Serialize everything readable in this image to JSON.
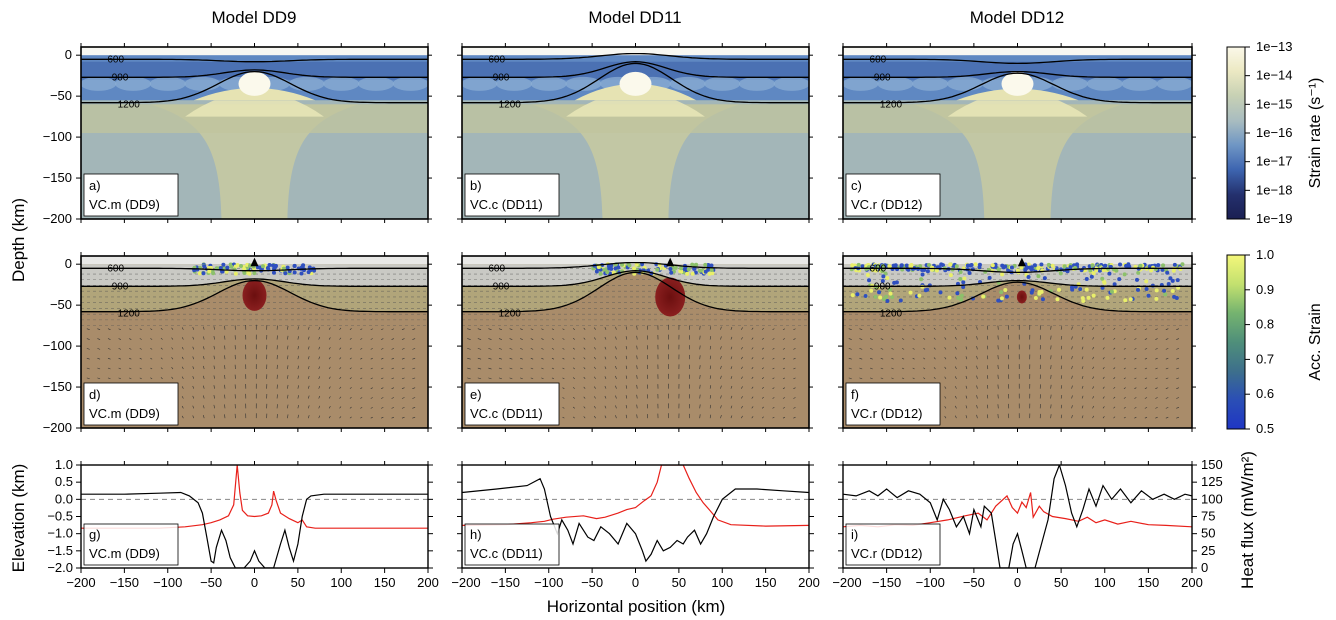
{
  "figure": {
    "columns": [
      {
        "title": "Model DD9",
        "model": "VC.m (DD9)"
      },
      {
        "title": "Model DD11",
        "model": "VC.c (DD11)"
      },
      {
        "title": "Model DD12",
        "model": "VC.r (DD12)"
      }
    ],
    "panel_letters": [
      "a)",
      "b)",
      "c)",
      "d)",
      "e)",
      "f)",
      "g)",
      "h)",
      "i)"
    ],
    "ylabel_depth": "Depth (km)",
    "ylabel_elevation": "Elevation (km)",
    "ylabel_heatflux": "Heat flux (mW/m²)",
    "xlabel": "Horizontal position (km)",
    "contour_labels": [
      "600",
      "900",
      "1200"
    ],
    "colorbar_strain_rate": {
      "label": "Strain rate (s⁻¹)",
      "ticks": [
        "1e−13",
        "1e−14",
        "1e−15",
        "1e−16",
        "1e−17",
        "1e−18",
        "1e−19"
      ],
      "colors": [
        "#fbf8e9",
        "#ece9c3",
        "#c8d1b4",
        "#a8bcc0",
        "#6f96c4",
        "#3e66b1",
        "#24306d",
        "#1a1f52"
      ]
    },
    "colorbar_acc_strain": {
      "label": "Acc. Strain",
      "ticks": [
        "1.0",
        "0.9",
        "0.8",
        "0.7",
        "0.6",
        "0.5"
      ],
      "colors": [
        "#f4f77a",
        "#c2e06f",
        "#76b46f",
        "#4f8f7a",
        "#3d6f8c",
        "#2b4fb5",
        "#1f36c4"
      ]
    }
  },
  "chart_data": [
    {
      "type": "heatmap",
      "row": "strain_rate",
      "x_range": [
        -200,
        200
      ],
      "y_range": [
        -200,
        10
      ],
      "y_ticks": [
        0,
        -50,
        -100,
        -150,
        -200
      ],
      "panels": [
        {
          "model": "DD9",
          "isotherm_peak_depth_km": -20
        },
        {
          "model": "DD11",
          "isotherm_peak_depth_km": -10
        },
        {
          "model": "DD12",
          "isotherm_peak_depth_km": -22
        }
      ]
    },
    {
      "type": "heatmap",
      "row": "accumulated_strain",
      "x_range": [
        -200,
        200
      ],
      "y_range": [
        -200,
        10
      ],
      "y_ticks": [
        0,
        -50,
        -100,
        -150,
        -200
      ],
      "panels": [
        {
          "model": "DD9",
          "melt_center_x_km": 0,
          "melt_depth_km": -38
        },
        {
          "model": "DD11",
          "melt_center_x_km": 40,
          "melt_depth_km": -40
        },
        {
          "model": "DD12",
          "melt_center_x_km": 5,
          "melt_depth_km": -40
        }
      ]
    },
    {
      "type": "line",
      "row": "elevation_heatflux",
      "x_range": [
        -200,
        200
      ],
      "x_ticks": [
        -200,
        -150,
        -100,
        -50,
        0,
        50,
        100,
        150,
        200
      ],
      "elevation_ylim": [
        -2.0,
        1.0
      ],
      "elevation_ticks": [
        1.0,
        0.5,
        0.0,
        -0.5,
        -1.0,
        -1.5,
        -2.0
      ],
      "heatflux_ylim": [
        0,
        150
      ],
      "heatflux_ticks": [
        150,
        125,
        100,
        75,
        50,
        25,
        0
      ],
      "series": [
        {
          "model": "DD9",
          "elevation": [
            [
              -200,
              0.15
            ],
            [
              -150,
              0.15
            ],
            [
              -110,
              0.18
            ],
            [
              -85,
              0.2
            ],
            [
              -75,
              0.1
            ],
            [
              -65,
              -0.1
            ],
            [
              -60,
              -0.4
            ],
            [
              -55,
              -1.1
            ],
            [
              -50,
              -1.8
            ],
            [
              -47,
              -1.85
            ],
            [
              -44,
              -1.4
            ],
            [
              -38,
              -0.9
            ],
            [
              -33,
              -1.2
            ],
            [
              -28,
              -1.7
            ],
            [
              -22,
              -2.0
            ],
            [
              -12,
              -2.0
            ],
            [
              -5,
              -1.8
            ],
            [
              0,
              -1.5
            ],
            [
              5,
              -1.8
            ],
            [
              12,
              -2.0
            ],
            [
              22,
              -2.0
            ],
            [
              30,
              -1.3
            ],
            [
              35,
              -0.9
            ],
            [
              40,
              -1.4
            ],
            [
              45,
              -1.8
            ],
            [
              50,
              -1.3
            ],
            [
              55,
              -0.5
            ],
            [
              60,
              0.0
            ],
            [
              65,
              0.1
            ],
            [
              80,
              0.15
            ],
            [
              120,
              0.15
            ],
            [
              200,
              0.15
            ]
          ],
          "heat_flux": [
            [
              -200,
              58
            ],
            [
              -150,
              58
            ],
            [
              -110,
              58
            ],
            [
              -80,
              60
            ],
            [
              -60,
              63
            ],
            [
              -50,
              66
            ],
            [
              -40,
              70
            ],
            [
              -30,
              76
            ],
            [
              -24,
              92
            ],
            [
              -22,
              120
            ],
            [
              -20,
              150
            ],
            [
              -17,
              110
            ],
            [
              -14,
              84
            ],
            [
              -8,
              76
            ],
            [
              0,
              75
            ],
            [
              8,
              76
            ],
            [
              16,
              80
            ],
            [
              20,
              92
            ],
            [
              22,
              112
            ],
            [
              25,
              98
            ],
            [
              30,
              80
            ],
            [
              40,
              72
            ],
            [
              50,
              66
            ],
            [
              55,
              70
            ],
            [
              60,
              60
            ],
            [
              70,
              58
            ],
            [
              100,
              58
            ],
            [
              200,
              58
            ]
          ]
        },
        {
          "model": "DD11",
          "elevation": [
            [
              -200,
              0.2
            ],
            [
              -160,
              0.3
            ],
            [
              -125,
              0.4
            ],
            [
              -110,
              0.6
            ],
            [
              -105,
              0.3
            ],
            [
              -98,
              -0.5
            ],
            [
              -90,
              -1.0
            ],
            [
              -85,
              -0.6
            ],
            [
              -78,
              -0.9
            ],
            [
              -72,
              -1.3
            ],
            [
              -65,
              -0.7
            ],
            [
              -55,
              -1.1
            ],
            [
              -48,
              -1.2
            ],
            [
              -40,
              -0.8
            ],
            [
              -30,
              -1.0
            ],
            [
              -20,
              -1.3
            ],
            [
              -10,
              -0.7
            ],
            [
              0,
              -1.0
            ],
            [
              8,
              -1.5
            ],
            [
              12,
              -1.8
            ],
            [
              18,
              -1.6
            ],
            [
              25,
              -1.2
            ],
            [
              32,
              -1.5
            ],
            [
              40,
              -1.4
            ],
            [
              48,
              -1.2
            ],
            [
              55,
              -1.3
            ],
            [
              60,
              -1.1
            ],
            [
              68,
              -0.9
            ],
            [
              75,
              -1.3
            ],
            [
              82,
              -1.0
            ],
            [
              90,
              -0.5
            ],
            [
              100,
              0.0
            ],
            [
              115,
              0.3
            ],
            [
              140,
              0.3
            ],
            [
              170,
              0.25
            ],
            [
              200,
              0.2
            ]
          ],
          "heat_flux": [
            [
              -200,
              62
            ],
            [
              -150,
              63
            ],
            [
              -120,
              66
            ],
            [
              -105,
              68
            ],
            [
              -95,
              71
            ],
            [
              -80,
              74
            ],
            [
              -60,
              76
            ],
            [
              -45,
              72
            ],
            [
              -35,
              74
            ],
            [
              -20,
              80
            ],
            [
              -10,
              85
            ],
            [
              0,
              88
            ],
            [
              10,
              98
            ],
            [
              18,
              105
            ],
            [
              25,
              125
            ],
            [
              30,
              150
            ],
            [
              55,
              150
            ],
            [
              62,
              130
            ],
            [
              70,
              110
            ],
            [
              78,
              95
            ],
            [
              85,
              85
            ],
            [
              95,
              70
            ],
            [
              110,
              63
            ],
            [
              150,
              61
            ],
            [
              200,
              62
            ]
          ]
        },
        {
          "model": "DD12",
          "elevation": [
            [
              -200,
              0.15
            ],
            [
              -185,
              0.1
            ],
            [
              -170,
              0.25
            ],
            [
              -160,
              0.1
            ],
            [
              -150,
              0.3
            ],
            [
              -138,
              0.05
            ],
            [
              -125,
              0.25
            ],
            [
              -112,
              0.15
            ],
            [
              -100,
              -0.1
            ],
            [
              -92,
              -0.6
            ],
            [
              -85,
              0.0
            ],
            [
              -78,
              -0.3
            ],
            [
              -70,
              -0.8
            ],
            [
              -62,
              -0.5
            ],
            [
              -55,
              -1.0
            ],
            [
              -50,
              -0.3
            ],
            [
              -42,
              -0.8
            ],
            [
              -38,
              -0.2
            ],
            [
              -30,
              -0.4
            ],
            [
              -25,
              -1.2
            ],
            [
              -20,
              -2.0
            ],
            [
              -10,
              -2.0
            ],
            [
              -5,
              -1.3
            ],
            [
              0,
              -1.0
            ],
            [
              5,
              -1.5
            ],
            [
              10,
              -2.0
            ],
            [
              20,
              -2.0
            ],
            [
              35,
              -0.6
            ],
            [
              42,
              0.6
            ],
            [
              48,
              1.0
            ],
            [
              55,
              0.4
            ],
            [
              62,
              -0.4
            ],
            [
              68,
              -0.8
            ],
            [
              75,
              -0.3
            ],
            [
              82,
              0.3
            ],
            [
              90,
              -0.2
            ],
            [
              98,
              0.4
            ],
            [
              108,
              0.0
            ],
            [
              118,
              0.3
            ],
            [
              130,
              -0.1
            ],
            [
              142,
              0.25
            ],
            [
              155,
              0.0
            ],
            [
              168,
              0.15
            ],
            [
              180,
              0.0
            ],
            [
              192,
              0.15
            ],
            [
              200,
              0.1
            ]
          ],
          "heat_flux": [
            [
              -200,
              60
            ],
            [
              -180,
              62
            ],
            [
              -160,
              60
            ],
            [
              -140,
              63
            ],
            [
              -120,
              62
            ],
            [
              -100,
              66
            ],
            [
              -80,
              70
            ],
            [
              -60,
              76
            ],
            [
              -45,
              80
            ],
            [
              -35,
              70
            ],
            [
              -25,
              90
            ],
            [
              -12,
              105
            ],
            [
              -6,
              88
            ],
            [
              0,
              80
            ],
            [
              5,
              96
            ],
            [
              10,
              88
            ],
            [
              15,
              110
            ],
            [
              18,
              74
            ],
            [
              25,
              90
            ],
            [
              30,
              82
            ],
            [
              40,
              75
            ],
            [
              55,
              72
            ],
            [
              70,
              68
            ],
            [
              80,
              74
            ],
            [
              90,
              66
            ],
            [
              100,
              70
            ],
            [
              115,
              64
            ],
            [
              130,
              68
            ],
            [
              150,
              63
            ],
            [
              170,
              62
            ],
            [
              200,
              60
            ]
          ]
        }
      ]
    }
  ]
}
